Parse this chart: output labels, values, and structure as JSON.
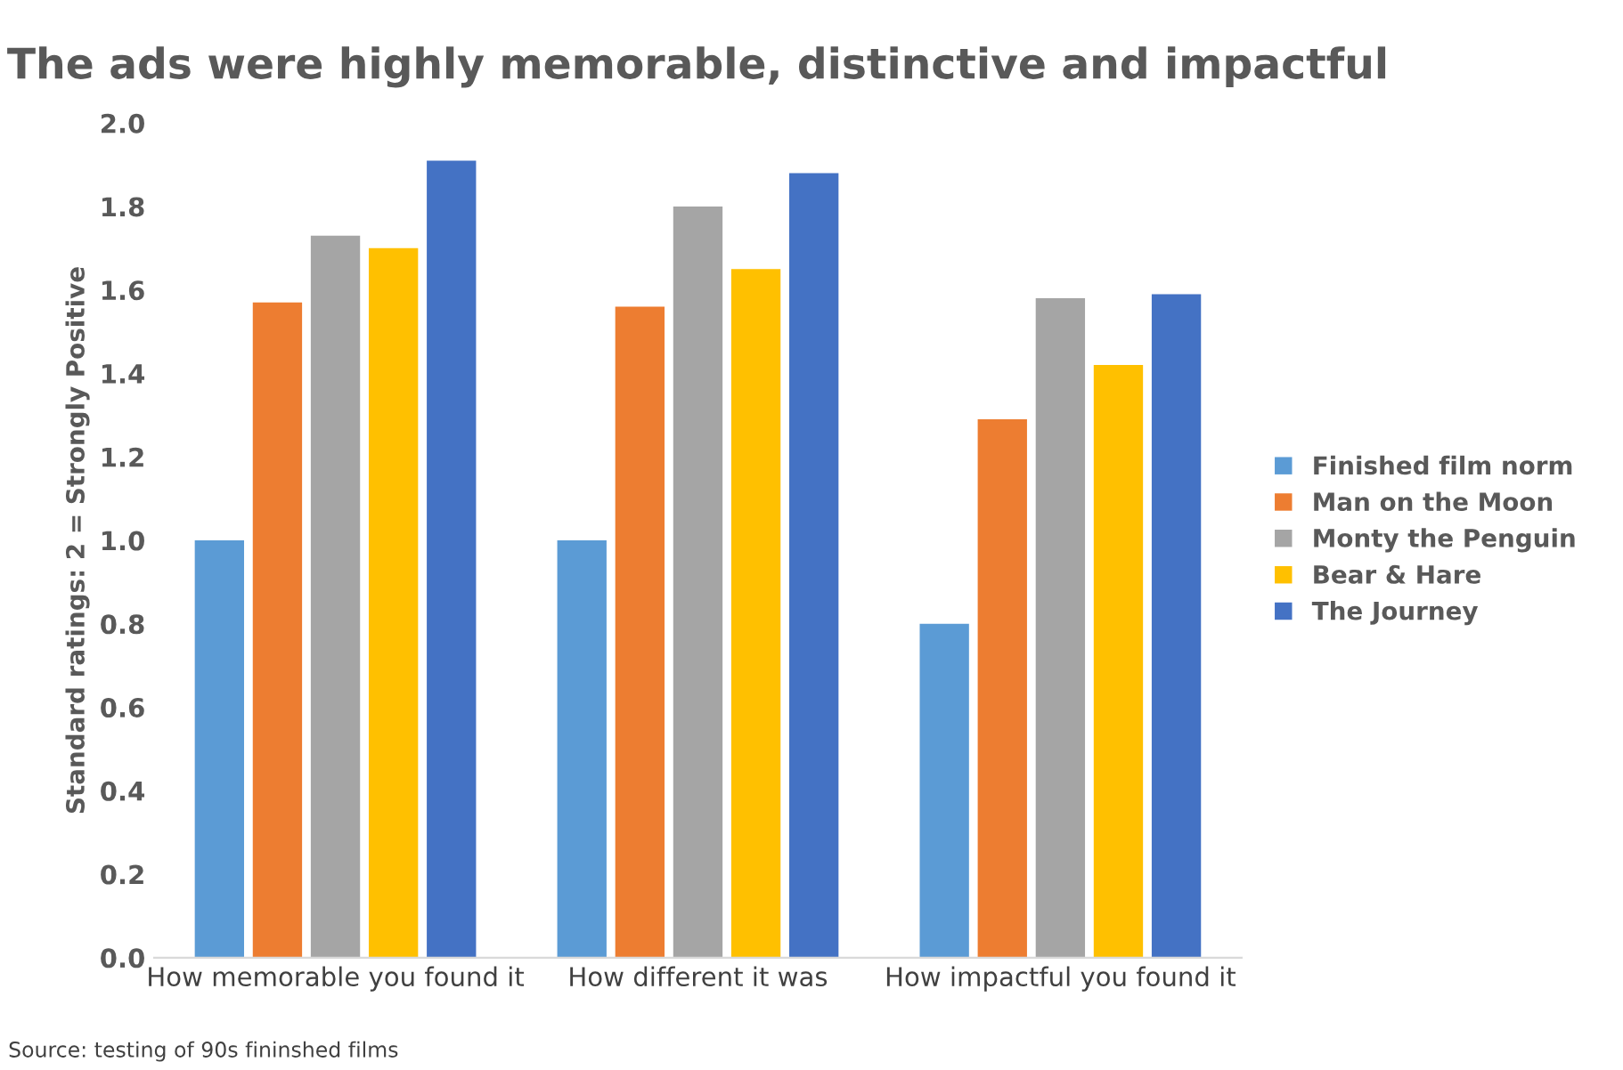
{
  "chart_data": {
    "type": "bar",
    "title": "The ads were highly memorable, distinctive and impactful",
    "ylabel": "Standard ratings: 2 = Strongly Positive",
    "categories": [
      "How memorable you found it",
      "How different it was",
      "How impactful you found it"
    ],
    "series": [
      {
        "name": "Finished film norm",
        "color": "#5b9bd5",
        "values": [
          1.0,
          1.0,
          0.8
        ]
      },
      {
        "name": "Man on the Moon",
        "color": "#ed7d31",
        "values": [
          1.57,
          1.56,
          1.29
        ]
      },
      {
        "name": "Monty the Penguin",
        "color": "#a5a5a5",
        "values": [
          1.73,
          1.8,
          1.58
        ]
      },
      {
        "name": "Bear & Hare",
        "color": "#ffc000",
        "values": [
          1.7,
          1.65,
          1.42
        ]
      },
      {
        "name": "The Journey",
        "color": "#4472c4",
        "values": [
          1.91,
          1.88,
          1.59
        ]
      }
    ],
    "ylim": [
      0,
      2.0
    ],
    "yticks": [
      {
        "value": 0,
        "label": "0.0"
      },
      {
        "value": 0.2,
        "label": "0.2"
      },
      {
        "value": 0.4,
        "label": "0.4"
      },
      {
        "value": 0.6,
        "label": "0.6"
      },
      {
        "value": 0.8,
        "label": "0.8"
      },
      {
        "value": 1.0,
        "label": "1.0"
      },
      {
        "value": 1.2,
        "label": "1.2"
      },
      {
        "value": 1.4,
        "label": "1.4"
      },
      {
        "value": 1.6,
        "label": "1.6"
      },
      {
        "value": 1.8,
        "label": "1.8"
      },
      {
        "value": 2.0,
        "label": "2.0"
      }
    ],
    "grid": false,
    "legend": "right",
    "annotations": [
      "Source: testing of 90s fininshed films"
    ]
  }
}
